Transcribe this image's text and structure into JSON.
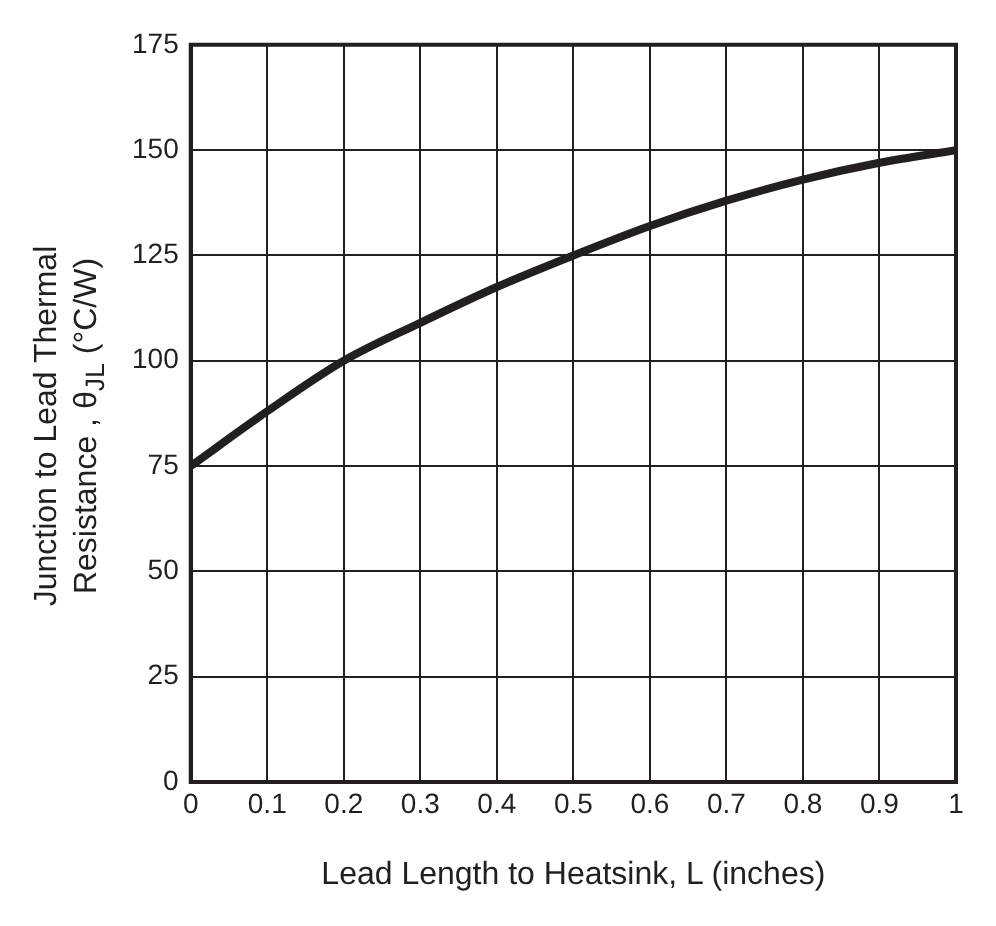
{
  "chart_data": {
    "type": "line",
    "xlabel": "Lead Length to Heatsink, L (inches)",
    "ylabel": "Junction to Lead Thermal\nResistance , θ$_{JL}$ (°C/W)",
    "x": [
      0,
      0.1,
      0.2,
      0.3,
      0.4,
      0.5,
      0.6,
      0.7,
      0.8,
      0.9,
      1
    ],
    "series": [
      {
        "color": "#231f20",
        "values": [
          75,
          88,
          100,
          109,
          117.5,
          125,
          132,
          138,
          143,
          147,
          150
        ]
      }
    ],
    "xlim": [
      0,
      1
    ],
    "xticks": [
      0,
      0.1,
      0.2,
      0.3,
      0.4,
      0.5,
      0.6,
      0.7,
      0.8,
      0.9,
      1
    ],
    "ylim": [
      0,
      175
    ],
    "yticks": [
      0,
      25,
      50,
      75,
      100,
      125,
      150,
      175
    ],
    "grid": true,
    "legend": false,
    "marker": "none",
    "line_style": "solid"
  }
}
